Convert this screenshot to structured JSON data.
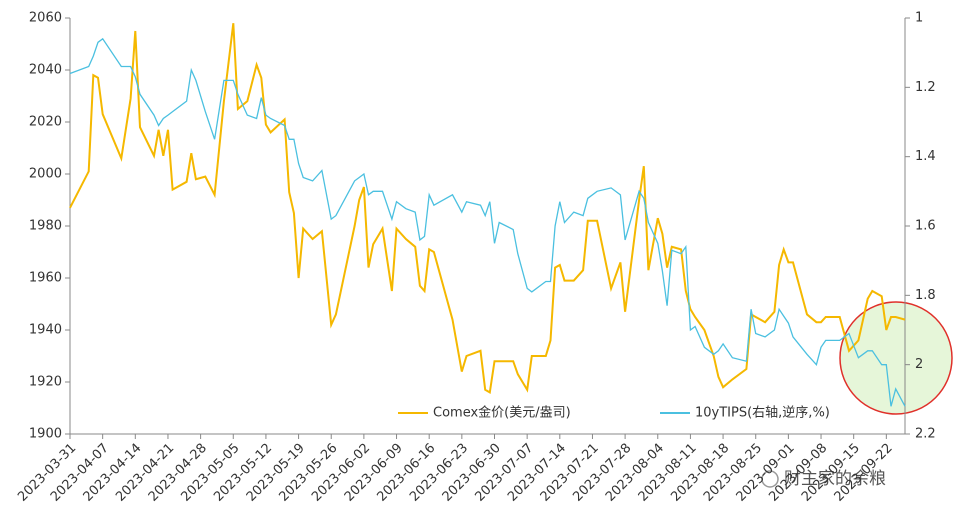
{
  "chart_data": {
    "type": "line",
    "x": [
      "2023-03-31",
      "2023-04-04",
      "2023-04-05",
      "2023-04-06",
      "2023-04-07",
      "2023-04-11",
      "2023-04-13",
      "2023-04-14",
      "2023-04-15",
      "2023-04-18",
      "2023-04-19",
      "2023-04-20",
      "2023-04-21",
      "2023-04-22",
      "2023-04-25",
      "2023-04-26",
      "2023-04-27",
      "2023-04-29",
      "2023-05-01",
      "2023-05-03",
      "2023-05-05",
      "2023-05-06",
      "2023-05-08",
      "2023-05-10",
      "2023-05-11",
      "2023-05-12",
      "2023-05-13",
      "2023-05-16",
      "2023-05-17",
      "2023-05-18",
      "2023-05-19",
      "2023-05-20",
      "2023-05-22",
      "2023-05-24",
      "2023-05-26",
      "2023-05-27",
      "2023-05-31",
      "2023-06-01",
      "2023-06-02",
      "2023-06-03",
      "2023-06-04",
      "2023-06-06",
      "2023-06-08",
      "2023-06-09",
      "2023-06-11",
      "2023-06-13",
      "2023-06-14",
      "2023-06-15",
      "2023-06-16",
      "2023-06-17",
      "2023-06-21",
      "2023-06-23",
      "2023-06-24",
      "2023-06-27",
      "2023-06-28",
      "2023-06-29",
      "2023-06-30",
      "2023-07-01",
      "2023-07-04",
      "2023-07-05",
      "2023-07-07",
      "2023-07-08",
      "2023-07-11",
      "2023-07-12",
      "2023-07-13",
      "2023-07-14",
      "2023-07-15",
      "2023-07-17",
      "2023-07-19",
      "2023-07-20",
      "2023-07-22",
      "2023-07-25",
      "2023-07-27",
      "2023-07-28",
      "2023-07-31",
      "2023-08-01",
      "2023-08-02",
      "2023-08-04",
      "2023-08-05",
      "2023-08-06",
      "2023-08-07",
      "2023-08-09",
      "2023-08-10",
      "2023-08-11",
      "2023-08-12",
      "2023-08-14",
      "2023-08-16",
      "2023-08-17",
      "2023-08-18",
      "2023-08-20",
      "2023-08-23",
      "2023-08-24",
      "2023-08-25",
      "2023-08-27",
      "2023-08-29",
      "2023-08-30",
      "2023-08-31",
      "2023-09-01",
      "2023-09-02",
      "2023-09-05",
      "2023-09-07",
      "2023-09-08",
      "2023-09-09",
      "2023-09-12",
      "2023-09-14",
      "2023-09-16",
      "2023-09-18",
      "2023-09-19",
      "2023-09-21",
      "2023-09-22",
      "2023-09-23",
      "2023-09-24",
      "2023-09-26"
    ],
    "series": [
      {
        "name": "Comex金价(美元/盎司)",
        "color": "#f5b800",
        "values": [
          1987,
          2001,
          2038,
          2037,
          2023,
          2006,
          2029,
          2055,
          2018,
          2007,
          2017,
          2007,
          2017,
          1994,
          1997,
          2008,
          1998,
          1999,
          1992,
          2028,
          2058,
          2025,
          2028,
          2042,
          2037,
          2019,
          2016,
          2021,
          1993,
          1985,
          1960,
          1979,
          1975,
          1978,
          1942,
          1946,
          1980,
          1990,
          1995,
          1964,
          1973,
          1979,
          1955,
          1979,
          1975,
          1972,
          1957,
          1955,
          1971,
          1970,
          1944,
          1924,
          1930,
          1932,
          1917,
          1916,
          1928,
          1928,
          1928,
          1923,
          1917,
          1930,
          1930,
          1936,
          1964,
          1965,
          1959,
          1959,
          1963,
          1982,
          1982,
          1956,
          1966,
          1947,
          1990,
          2003,
          1963,
          1983,
          1977,
          1964,
          1972,
          1971,
          1955,
          1948,
          1945,
          1940,
          1930,
          1922,
          1918,
          1921,
          1925,
          1946,
          1945,
          1943,
          1947,
          1965,
          1971,
          1966,
          1966,
          1946,
          1943,
          1943,
          1945,
          1945,
          1932,
          1936,
          1952,
          1955,
          1953,
          1940,
          1945,
          1945,
          1944
        ]
      },
      {
        "name": "10yTIPS(右轴,逆序,%)",
        "color": "#4bc0e0",
        "axis": "y2",
        "values": [
          1.16,
          1.14,
          1.11,
          1.07,
          1.06,
          1.14,
          1.14,
          1.17,
          1.22,
          1.28,
          1.31,
          1.29,
          1.28,
          1.27,
          1.24,
          1.15,
          1.18,
          1.27,
          1.35,
          1.18,
          1.18,
          1.22,
          1.28,
          1.29,
          1.23,
          1.28,
          1.29,
          1.31,
          1.35,
          1.35,
          1.42,
          1.46,
          1.47,
          1.44,
          1.58,
          1.57,
          1.47,
          1.46,
          1.45,
          1.51,
          1.5,
          1.5,
          1.58,
          1.53,
          1.55,
          1.56,
          1.64,
          1.63,
          1.51,
          1.54,
          1.51,
          1.56,
          1.53,
          1.54,
          1.57,
          1.53,
          1.65,
          1.59,
          1.61,
          1.68,
          1.78,
          1.79,
          1.76,
          1.76,
          1.6,
          1.53,
          1.59,
          1.56,
          1.57,
          1.52,
          1.5,
          1.49,
          1.51,
          1.64,
          1.5,
          1.52,
          1.59,
          1.65,
          1.73,
          1.83,
          1.67,
          1.68,
          1.66,
          1.9,
          1.89,
          1.95,
          1.97,
          1.96,
          1.94,
          1.98,
          1.99,
          1.84,
          1.91,
          1.92,
          1.9,
          1.84,
          1.86,
          1.88,
          1.92,
          1.97,
          2.0,
          1.95,
          1.93,
          1.93,
          1.91,
          1.98,
          1.96,
          1.96,
          2.0,
          2.0,
          2.12,
          2.07,
          2.12
        ]
      }
    ],
    "xlim": [
      "2023-03-31",
      "2023-09-26"
    ],
    "xticks": [
      "2023-03-31",
      "2023-04-07",
      "2023-04-14",
      "2023-04-21",
      "2023-04-28",
      "2023-05-05",
      "2023-05-12",
      "2023-05-19",
      "2023-05-26",
      "2023-06-02",
      "2023-06-09",
      "2023-06-16",
      "2023-06-23",
      "2023-06-30",
      "2023-07-07",
      "2023-07-14",
      "2023-07-21",
      "2023-07-28",
      "2023-08-04",
      "2023-08-11",
      "2023-08-18",
      "2023-08-25",
      "2023-09-01",
      "2023-09-08",
      "2023-09-15",
      "2023-09-22"
    ],
    "ylim": [
      1900,
      2060
    ],
    "yticks": [
      1900,
      1920,
      1940,
      1960,
      1980,
      2000,
      2020,
      2040,
      2060
    ],
    "y2lim": [
      1,
      2.2
    ],
    "y2ticks": [
      1,
      1.2,
      1.4,
      1.6,
      1.8,
      2,
      2.2
    ],
    "y2_inverted": true,
    "legend": "bottom",
    "watermark": "财主家的余粮"
  }
}
